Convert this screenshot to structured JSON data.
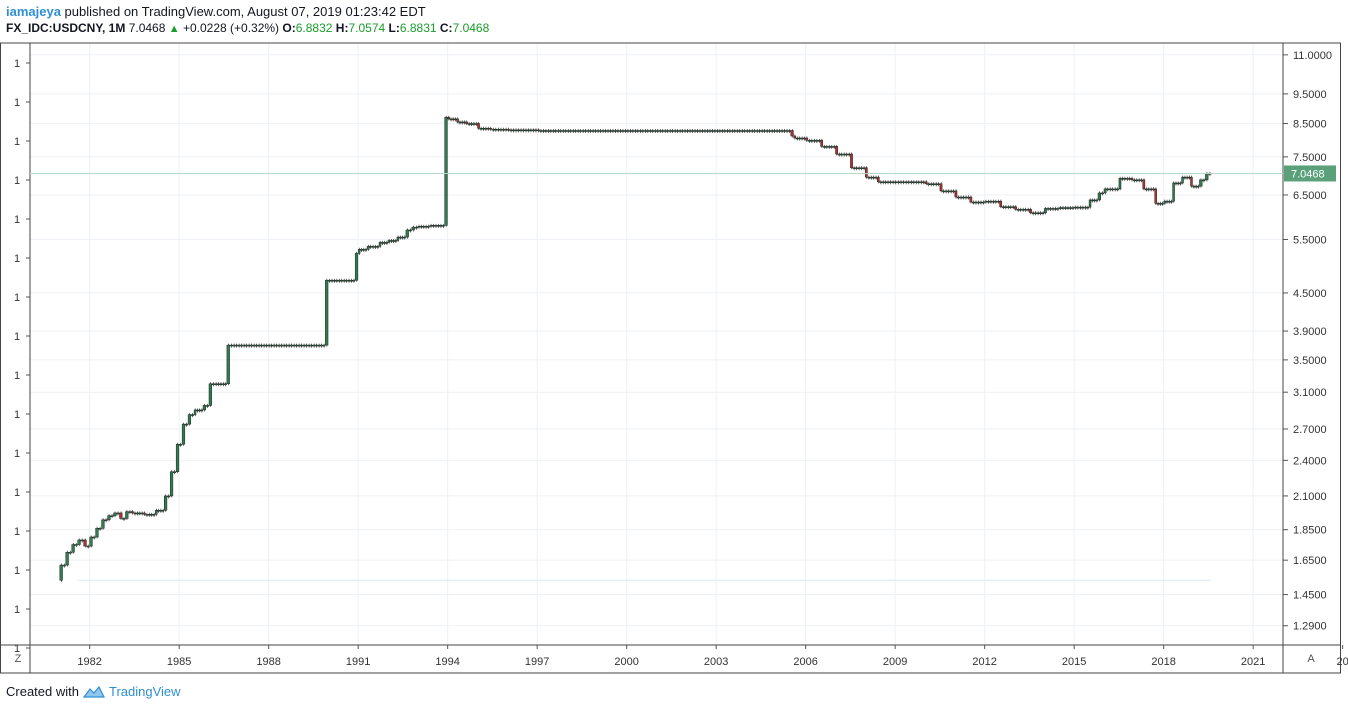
{
  "header": {
    "user": "iamajeya",
    "published": " published on TradingView.com, August 07, 2019 01:23:42 EDT",
    "symbol": "FX_IDC:USDCNY, 1M",
    "last": "7.0468",
    "change_arrow": "▲",
    "change": "+0.0228 (+0.32%)",
    "o_label": "O:",
    "o_val": "6.8832",
    "h_label": "H:",
    "h_val": "7.0574",
    "l_label": "L:",
    "l_val": "6.8831",
    "c_label": "C:",
    "c_val": "7.0468"
  },
  "footer": {
    "created": "Created with",
    "brand": "TradingView",
    "icon": "tradingview-logo-icon"
  },
  "buttons": {
    "z": "Z",
    "a": "A"
  },
  "colors": {
    "up": "#1a9b2a",
    "down": "#a52a2a",
    "body_up": "#2e7d4f",
    "body_down": "#b03030",
    "price_label": "#5aa07a",
    "grid": "#eef1f6"
  },
  "chart_data": {
    "type": "candlestick",
    "symbol": "FX_IDC:USDCNY",
    "interval": "1M",
    "x_ticks": [
      "1982",
      "1985",
      "1988",
      "1991",
      "1994",
      "1997",
      "2000",
      "2003",
      "2006",
      "2009",
      "2012",
      "2015",
      "2018",
      "2021",
      "20"
    ],
    "y_ticks_right": [
      "11.0000",
      "9.5000",
      "8.5000",
      "7.5000",
      "6.5000",
      "5.5000",
      "4.5000",
      "3.9000",
      "3.5000",
      "3.1000",
      "2.7000",
      "2.4000",
      "2.1000",
      "1.8500",
      "1.6500",
      "1.4500",
      "1.2900"
    ],
    "y_ticks_left": [
      "1",
      "1",
      "1",
      "1",
      "1",
      "1",
      "1",
      "1",
      "1",
      "1",
      "1",
      "1",
      "1",
      "1",
      "1",
      "1"
    ],
    "scale": "log",
    "ylim": [
      1.2,
      11.5
    ],
    "xlim": [
      1980.0,
      2022.0
    ],
    "last_price": 7.0468,
    "last_price_label": "7.0468",
    "series": [
      [
        1981.0,
        1.53
      ],
      [
        1981.2,
        1.62
      ],
      [
        1981.4,
        1.7
      ],
      [
        1981.6,
        1.75
      ],
      [
        1981.8,
        1.78
      ],
      [
        1982.0,
        1.74
      ],
      [
        1982.2,
        1.8
      ],
      [
        1982.4,
        1.86
      ],
      [
        1982.6,
        1.92
      ],
      [
        1982.8,
        1.95
      ],
      [
        1983.0,
        1.97
      ],
      [
        1983.2,
        1.93
      ],
      [
        1983.4,
        1.98
      ],
      [
        1983.8,
        1.97
      ],
      [
        1984.2,
        1.96
      ],
      [
        1984.5,
        1.99
      ],
      [
        1984.7,
        2.1
      ],
      [
        1984.9,
        2.3
      ],
      [
        1985.1,
        2.55
      ],
      [
        1985.3,
        2.75
      ],
      [
        1985.5,
        2.85
      ],
      [
        1985.8,
        2.9
      ],
      [
        1986.0,
        2.95
      ],
      [
        1986.2,
        3.2
      ],
      [
        1986.6,
        3.2
      ],
      [
        1986.8,
        3.7
      ],
      [
        1989.9,
        3.7
      ],
      [
        1990.0,
        4.72
      ],
      [
        1990.9,
        4.72
      ],
      [
        1991.0,
        5.22
      ],
      [
        1991.3,
        5.3
      ],
      [
        1991.7,
        5.36
      ],
      [
        1992.0,
        5.44
      ],
      [
        1992.3,
        5.48
      ],
      [
        1992.6,
        5.55
      ],
      [
        1992.8,
        5.7
      ],
      [
        1993.0,
        5.76
      ],
      [
        1993.4,
        5.78
      ],
      [
        1993.9,
        5.8
      ],
      [
        1994.0,
        8.7
      ],
      [
        1994.3,
        8.65
      ],
      [
        1994.6,
        8.55
      ],
      [
        1995.0,
        8.5
      ],
      [
        1995.4,
        8.35
      ],
      [
        1996.0,
        8.32
      ],
      [
        1997.0,
        8.3
      ],
      [
        1998.0,
        8.28
      ],
      [
        2000.0,
        8.28
      ],
      [
        2003.0,
        8.28
      ],
      [
        2005.5,
        8.28
      ],
      [
        2005.6,
        8.11
      ],
      [
        2006.0,
        8.05
      ],
      [
        2006.5,
        7.98
      ],
      [
        2007.0,
        7.8
      ],
      [
        2007.5,
        7.58
      ],
      [
        2008.0,
        7.2
      ],
      [
        2008.4,
        6.95
      ],
      [
        2008.8,
        6.83
      ],
      [
        2009.5,
        6.83
      ],
      [
        2010.0,
        6.83
      ],
      [
        2010.5,
        6.78
      ],
      [
        2011.0,
        6.6
      ],
      [
        2011.5,
        6.45
      ],
      [
        2012.0,
        6.33
      ],
      [
        2012.5,
        6.35
      ],
      [
        2013.0,
        6.22
      ],
      [
        2013.5,
        6.16
      ],
      [
        2014.0,
        6.08
      ],
      [
        2014.5,
        6.18
      ],
      [
        2015.0,
        6.2
      ],
      [
        2015.5,
        6.21
      ],
      [
        2015.8,
        6.38
      ],
      [
        2016.0,
        6.55
      ],
      [
        2016.5,
        6.65
      ],
      [
        2016.9,
        6.92
      ],
      [
        2017.3,
        6.88
      ],
      [
        2017.7,
        6.65
      ],
      [
        2018.0,
        6.3
      ],
      [
        2018.3,
        6.35
      ],
      [
        2018.6,
        6.8
      ],
      [
        2018.9,
        6.95
      ],
      [
        2019.2,
        6.72
      ],
      [
        2019.4,
        6.88
      ],
      [
        2019.6,
        7.05
      ]
    ]
  }
}
